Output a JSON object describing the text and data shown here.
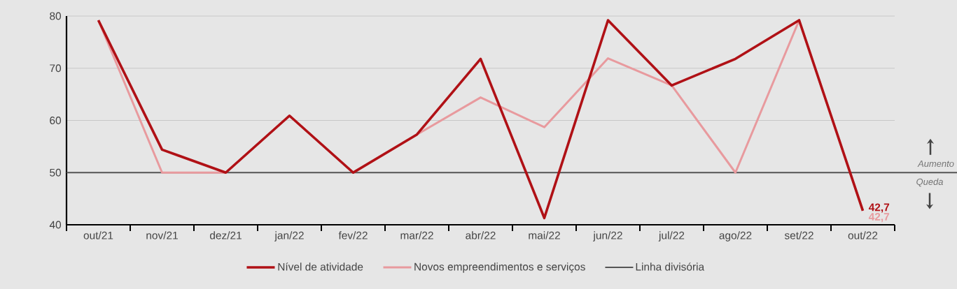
{
  "chart_data": {
    "type": "line",
    "categories": [
      "out/21",
      "nov/21",
      "dez/21",
      "jan/22",
      "fev/22",
      "mar/22",
      "abr/22",
      "mai/22",
      "jun/22",
      "jul/22",
      "ago/22",
      "set/22",
      "out/22"
    ],
    "series": [
      {
        "name": "Nível de atividade",
        "color": "#b01116",
        "values": [
          79.2,
          54.4,
          50,
          60.9,
          50,
          57.3,
          71.8,
          41.3,
          79.2,
          66.7,
          71.8,
          79.2,
          42.7
        ],
        "value_labels": [
          null,
          null,
          null,
          null,
          null,
          null,
          null,
          null,
          null,
          null,
          null,
          null,
          "42,7"
        ]
      },
      {
        "name": "Novos empreendimentos e serviços",
        "color": "#e89a9e",
        "values": [
          79.2,
          50,
          50,
          60.9,
          50,
          57.3,
          64.4,
          58.7,
          71.9,
          66.7,
          50,
          79.2,
          42.7
        ],
        "value_labels": [
          null,
          null,
          null,
          null,
          null,
          null,
          null,
          null,
          null,
          null,
          null,
          null,
          "42,7"
        ]
      }
    ],
    "ylim": [
      40,
      80
    ],
    "yticks": [
      40,
      50,
      60,
      70,
      80
    ],
    "grid": "y",
    "legend": "bottom",
    "marker": "none",
    "line_style": "solid",
    "ref_lines": [
      {
        "axis": "y",
        "value": 50,
        "label": "Linha divisória",
        "color": "#555555"
      }
    ],
    "annotations": [
      "Aumento",
      "Queda"
    ]
  }
}
